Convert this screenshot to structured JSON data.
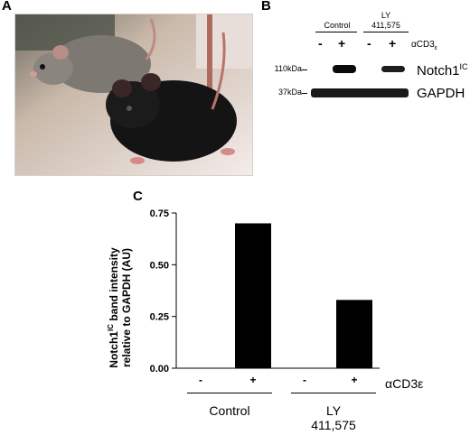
{
  "panels": {
    "a": "A",
    "b": "B",
    "c": "C"
  },
  "western_blot": {
    "groups": [
      {
        "label_lines": [
          "Control"
        ]
      },
      {
        "label_lines": [
          "LY",
          "411,575"
        ]
      }
    ],
    "lane_signs": [
      "-",
      "+",
      "-",
      "+"
    ],
    "stimulus_prefix": "α",
    "stimulus_main": "CD3",
    "stimulus_sub": "ε",
    "rows": [
      {
        "marker": "110kDa",
        "protein": "Notch1",
        "protein_sup": "IC"
      },
      {
        "marker": "37kDa",
        "protein": "GAPDH",
        "protein_sup": ""
      }
    ]
  },
  "chart_data": {
    "type": "bar",
    "ylabel_lines": [
      "Notch1",
      "IC",
      "band intensity",
      "relative to GAPDH (AU)"
    ],
    "ylim": [
      0,
      0.75
    ],
    "yticks": [
      "0.00",
      "0.25",
      "0.50",
      "0.75"
    ],
    "categories": [
      "-",
      "+",
      "-",
      "+"
    ],
    "values": [
      0,
      0.7,
      0,
      0.33
    ],
    "stimulus_label": "αCD3ε",
    "groups": [
      {
        "label_lines": [
          "Control"
        ]
      },
      {
        "label_lines": [
          "LY",
          "411,575"
        ]
      }
    ],
    "bar_color": "#000000"
  }
}
